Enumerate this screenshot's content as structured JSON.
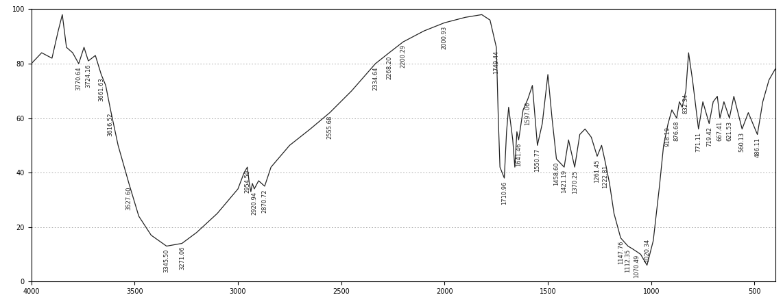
{
  "chart_data": {
    "type": "line",
    "xlim": [
      4000,
      400
    ],
    "xticks": [
      4000,
      3500,
      3000,
      2500,
      2000,
      1500,
      1000,
      500
    ],
    "ylim": [
      0,
      100
    ],
    "yticks": [
      0,
      20,
      40,
      60,
      80,
      100
    ],
    "grid": true,
    "series": [
      {
        "color": "#222222",
        "line_style": "solid",
        "x": [
          4000,
          3950,
          3900,
          3870,
          3850,
          3830,
          3800,
          3770.64,
          3745,
          3724.16,
          3690,
          3661.63,
          3640,
          3616.52,
          3580,
          3527.6,
          3480,
          3420,
          3345.5,
          3271.06,
          3200,
          3100,
          3000,
          2970,
          2954.5,
          2945,
          2937.58,
          2930,
          2920.94,
          2900,
          2870.72,
          2840,
          2750,
          2650,
          2555.68,
          2450,
          2334.64,
          2268.2,
          2200.29,
          2100,
          2000.93,
          1900,
          1820,
          1780,
          1749.44,
          1740,
          1731.96,
          1710.96,
          1700,
          1690,
          1670,
          1660,
          1650,
          1641.46,
          1620,
          1597.06,
          1575,
          1550.77,
          1527.12,
          1500,
          1480,
          1458.6,
          1421.19,
          1400,
          1370.25,
          1345.53,
          1320,
          1290,
          1261.45,
          1240,
          1222.81,
          1201.65,
          1180,
          1147.76,
          1112.35,
          1090.51,
          1070.49,
          1051.2,
          1020.34,
          990,
          960,
          940,
          918.19,
          900,
          876.68,
          863.63,
          850,
          832.34,
          819.03,
          800,
          771.11,
          750,
          719.42,
          700,
          680,
          667.41,
          648,
          621.53,
          600,
          560.13,
          530,
          486.11,
          460,
          430,
          400
        ],
        "values": [
          80,
          84,
          82,
          92,
          98,
          86,
          84,
          80,
          86,
          81,
          83,
          76,
          72,
          63,
          50,
          36,
          24,
          17,
          13,
          14,
          18,
          25,
          34,
          40,
          42,
          36,
          33,
          36,
          34,
          37,
          35,
          42,
          50,
          56,
          62,
          70,
          80,
          84,
          88,
          92,
          95,
          97,
          98,
          96,
          86,
          60,
          42,
          38,
          55,
          64,
          52,
          42,
          55,
          52,
          63,
          67,
          72,
          50,
          58,
          76,
          60,
          45,
          42,
          52,
          42,
          54,
          56,
          53,
          46,
          50,
          44,
          36,
          25,
          16,
          13,
          12,
          11,
          10,
          6,
          15,
          35,
          50,
          58,
          63,
          60,
          66,
          64,
          70,
          84,
          74,
          56,
          66,
          58,
          66,
          68,
          60,
          66,
          60,
          68,
          56,
          62,
          54,
          66,
          74,
          78
        ]
      }
    ],
    "annotations": [
      {
        "text": "3770.64",
        "x": 3770.64,
        "y": 80
      },
      {
        "text": "3724.16",
        "x": 3724.16,
        "y": 81
      },
      {
        "text": "3661.63",
        "x": 3661.63,
        "y": 76
      },
      {
        "text": "3616.52",
        "x": 3616.52,
        "y": 63
      },
      {
        "text": "3527.60",
        "x": 3527.6,
        "y": 36
      },
      {
        "text": "3345.50",
        "x": 3345.5,
        "y": 13
      },
      {
        "text": "3271.06",
        "x": 3271.06,
        "y": 14
      },
      {
        "text": "2954.50",
        "x": 2954.5,
        "y": 42
      },
      {
        "text": "2920.94",
        "x": 2920.94,
        "y": 34
      },
      {
        "text": "2870.72",
        "x": 2870.72,
        "y": 35
      },
      {
        "text": "2555.68",
        "x": 2555.68,
        "y": 62
      },
      {
        "text": "2334.64",
        "x": 2334.64,
        "y": 80
      },
      {
        "text": "2268.20",
        "x": 2268.2,
        "y": 84
      },
      {
        "text": "2200.29",
        "x": 2200.29,
        "y": 88
      },
      {
        "text": "2000.93",
        "x": 2000.93,
        "y": 95
      },
      {
        "text": "1749.44",
        "x": 1749.44,
        "y": 86
      },
      {
        "text": "1710.96",
        "x": 1710.96,
        "y": 38
      },
      {
        "text": "1641.46",
        "x": 1641.46,
        "y": 52
      },
      {
        "text": "1597.06",
        "x": 1597.06,
        "y": 67
      },
      {
        "text": "1550.77",
        "x": 1550.77,
        "y": 50
      },
      {
        "text": "1458.60",
        "x": 1458.6,
        "y": 45
      },
      {
        "text": "1421.19",
        "x": 1421.19,
        "y": 42
      },
      {
        "text": "1370.25",
        "x": 1370.25,
        "y": 42
      },
      {
        "text": "1261.45",
        "x": 1261.45,
        "y": 46
      },
      {
        "text": "1222.81",
        "x": 1222.81,
        "y": 44
      },
      {
        "text": "1147.76",
        "x": 1147.76,
        "y": 16
      },
      {
        "text": "1112.35",
        "x": 1112.35,
        "y": 13
      },
      {
        "text": "1070.49",
        "x": 1070.49,
        "y": 11
      },
      {
        "text": "1020.34",
        "x": 1020.34,
        "y": 6
      },
      {
        "text": "918.19",
        "x": 918.19,
        "y": 58
      },
      {
        "text": "876.68",
        "x": 876.68,
        "y": 60
      },
      {
        "text": "832.34",
        "x": 832.34,
        "y": 70
      },
      {
        "text": "771.11",
        "x": 771.11,
        "y": 56
      },
      {
        "text": "719.42",
        "x": 719.42,
        "y": 58
      },
      {
        "text": "667.41",
        "x": 667.41,
        "y": 60
      },
      {
        "text": "621.53",
        "x": 621.53,
        "y": 60
      },
      {
        "text": "560.13",
        "x": 560.13,
        "y": 56
      },
      {
        "text": "486.11",
        "x": 486.11,
        "y": 54
      }
    ]
  }
}
